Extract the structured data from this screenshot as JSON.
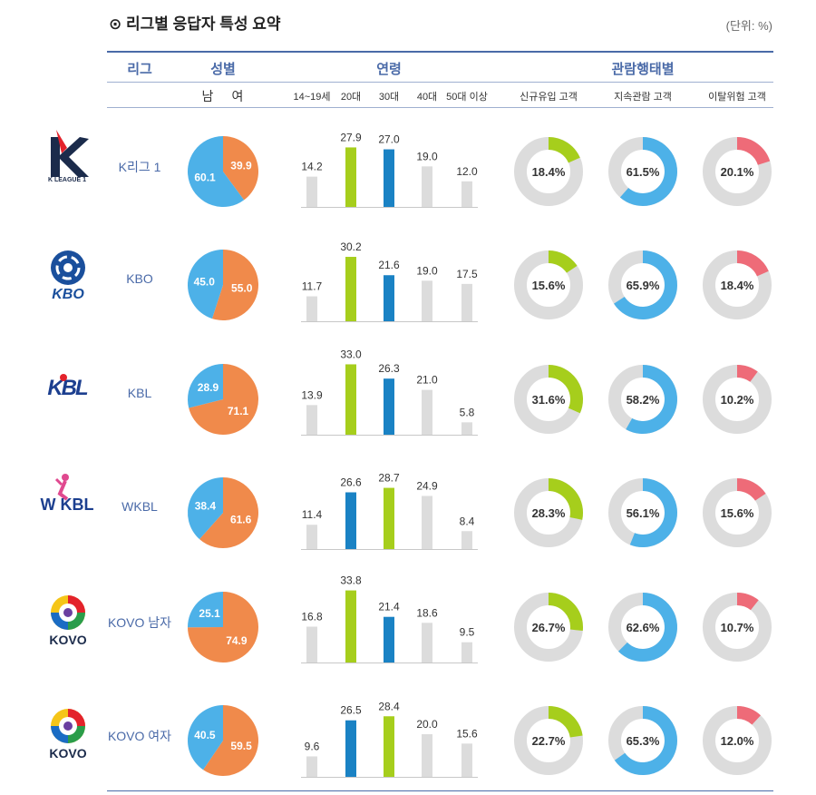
{
  "title": "⊙ 리그별 응답자 특성 요약",
  "unit": "(단위: %)",
  "headers": {
    "league": "리그",
    "gender": "성별",
    "age": "연령",
    "behavior": "관람행태별"
  },
  "subheaders": {
    "male": "남",
    "female": "여",
    "age_groups": [
      "14~19세",
      "20대",
      "30대",
      "40대",
      "50대 이상"
    ],
    "behavior_groups": [
      "신규유입 고객",
      "지속관람 고객",
      "이탈위험 고객"
    ]
  },
  "logo_texts": {
    "kleague": "K LEAGUE 1",
    "kbo": "KBO",
    "kbl": "KBL",
    "wkbl": "W KBL",
    "kovo": "KOVO"
  },
  "colors": {
    "header": "#4a6aa8",
    "male": "#4db1e8",
    "female": "#f08a4b",
    "bar_gray": "#dcdcdc",
    "bar_green": "#a6ce1c",
    "bar_blue": "#1a82c4",
    "ring_bg": "#dcdcdc",
    "ring_new": "#a6ce1c",
    "ring_cont": "#4db1e8",
    "ring_risk": "#ee6b78"
  },
  "chart_data": {
    "type": "table",
    "series_names": {
      "gender": [
        "남",
        "여"
      ],
      "age": [
        "14~19세",
        "20대",
        "30대",
        "40대",
        "50대 이상"
      ],
      "behavior": [
        "신규유입 고객",
        "지속관람 고객",
        "이탈위험 고객"
      ]
    },
    "rows": [
      {
        "league": "K리그 1",
        "logo": "kleague",
        "male": 60.1,
        "female": 39.9,
        "age": [
          14.2,
          27.9,
          27.0,
          19.0,
          12.0
        ],
        "age_colors": [
          "gray",
          "green",
          "blue",
          "gray",
          "gray"
        ],
        "behavior": [
          18.4,
          61.5,
          20.1
        ]
      },
      {
        "league": "KBO",
        "logo": "kbo",
        "male": 45.0,
        "female": 55.0,
        "age": [
          11.7,
          30.2,
          21.6,
          19.0,
          17.5
        ],
        "age_colors": [
          "gray",
          "green",
          "blue",
          "gray",
          "gray"
        ],
        "behavior": [
          15.6,
          65.9,
          18.4
        ]
      },
      {
        "league": "KBL",
        "logo": "kbl",
        "male": 28.9,
        "female": 71.1,
        "age": [
          13.9,
          33.0,
          26.3,
          21.0,
          5.8
        ],
        "age_colors": [
          "gray",
          "green",
          "blue",
          "gray",
          "gray"
        ],
        "behavior": [
          31.6,
          58.2,
          10.2
        ]
      },
      {
        "league": "WKBL",
        "logo": "wkbl",
        "male": 38.4,
        "female": 61.6,
        "age": [
          11.4,
          26.6,
          28.7,
          24.9,
          8.4
        ],
        "age_colors": [
          "gray",
          "blue",
          "green",
          "gray",
          "gray"
        ],
        "behavior": [
          28.3,
          56.1,
          15.6
        ]
      },
      {
        "league": "KOVO 남자",
        "logo": "kovo",
        "male": 25.1,
        "female": 74.9,
        "age": [
          16.8,
          33.8,
          21.4,
          18.6,
          9.5
        ],
        "age_colors": [
          "gray",
          "green",
          "blue",
          "gray",
          "gray"
        ],
        "behavior": [
          26.7,
          62.6,
          10.7
        ]
      },
      {
        "league": "KOVO 여자",
        "logo": "kovo",
        "male": 40.5,
        "female": 59.5,
        "age": [
          9.6,
          26.5,
          28.4,
          20.0,
          15.6
        ],
        "age_colors": [
          "gray",
          "blue",
          "green",
          "gray",
          "gray"
        ],
        "behavior": [
          22.7,
          65.3,
          12.0
        ]
      }
    ]
  }
}
